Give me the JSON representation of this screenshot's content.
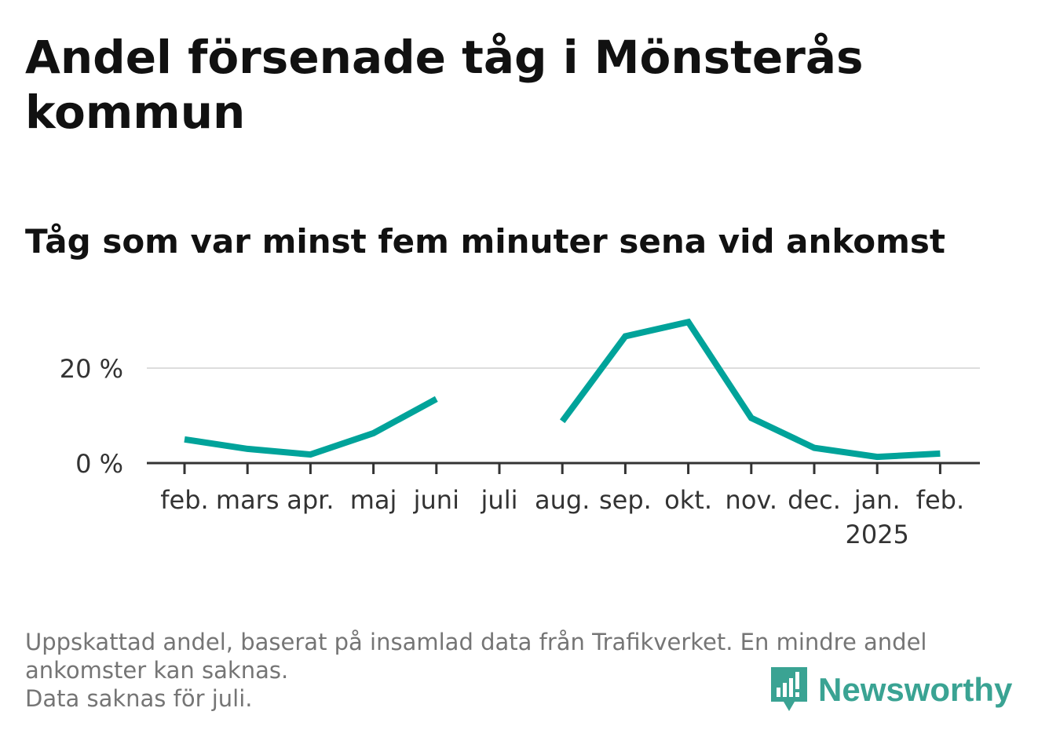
{
  "chart_data": {
    "type": "line",
    "title": "Andel försenade tåg i Mönsterås kommun",
    "subtitle": "Tåg som var minst fem minuter sena vid ankomst",
    "categories": [
      "feb.",
      "mars",
      "apr.",
      "maj",
      "juni",
      "juli",
      "aug.",
      "sep.",
      "okt.",
      "nov.",
      "dec.",
      "jan.",
      "feb."
    ],
    "year_label": "2025",
    "year_label_category_index": 11,
    "series": [
      {
        "values": [
          5.0,
          3.0,
          1.8,
          6.3,
          13.5,
          null,
          8.8,
          26.7,
          29.7,
          9.5,
          3.2,
          1.3,
          2.0
        ]
      }
    ],
    "y_ticks": [
      0,
      20
    ],
    "y_tick_labels": [
      "0 %",
      "20 %"
    ],
    "ylim": [
      0,
      32
    ],
    "grid": true,
    "line_color": "#00a39a"
  },
  "footnote": {
    "line1": "Uppskattad andel, baserat på insamlad data från Trafikverket. En mindre andel ankomster kan saknas.",
    "line2": "Data saknas för juli."
  },
  "logo": {
    "text": "Newsworthy",
    "color": "#3aa393"
  }
}
